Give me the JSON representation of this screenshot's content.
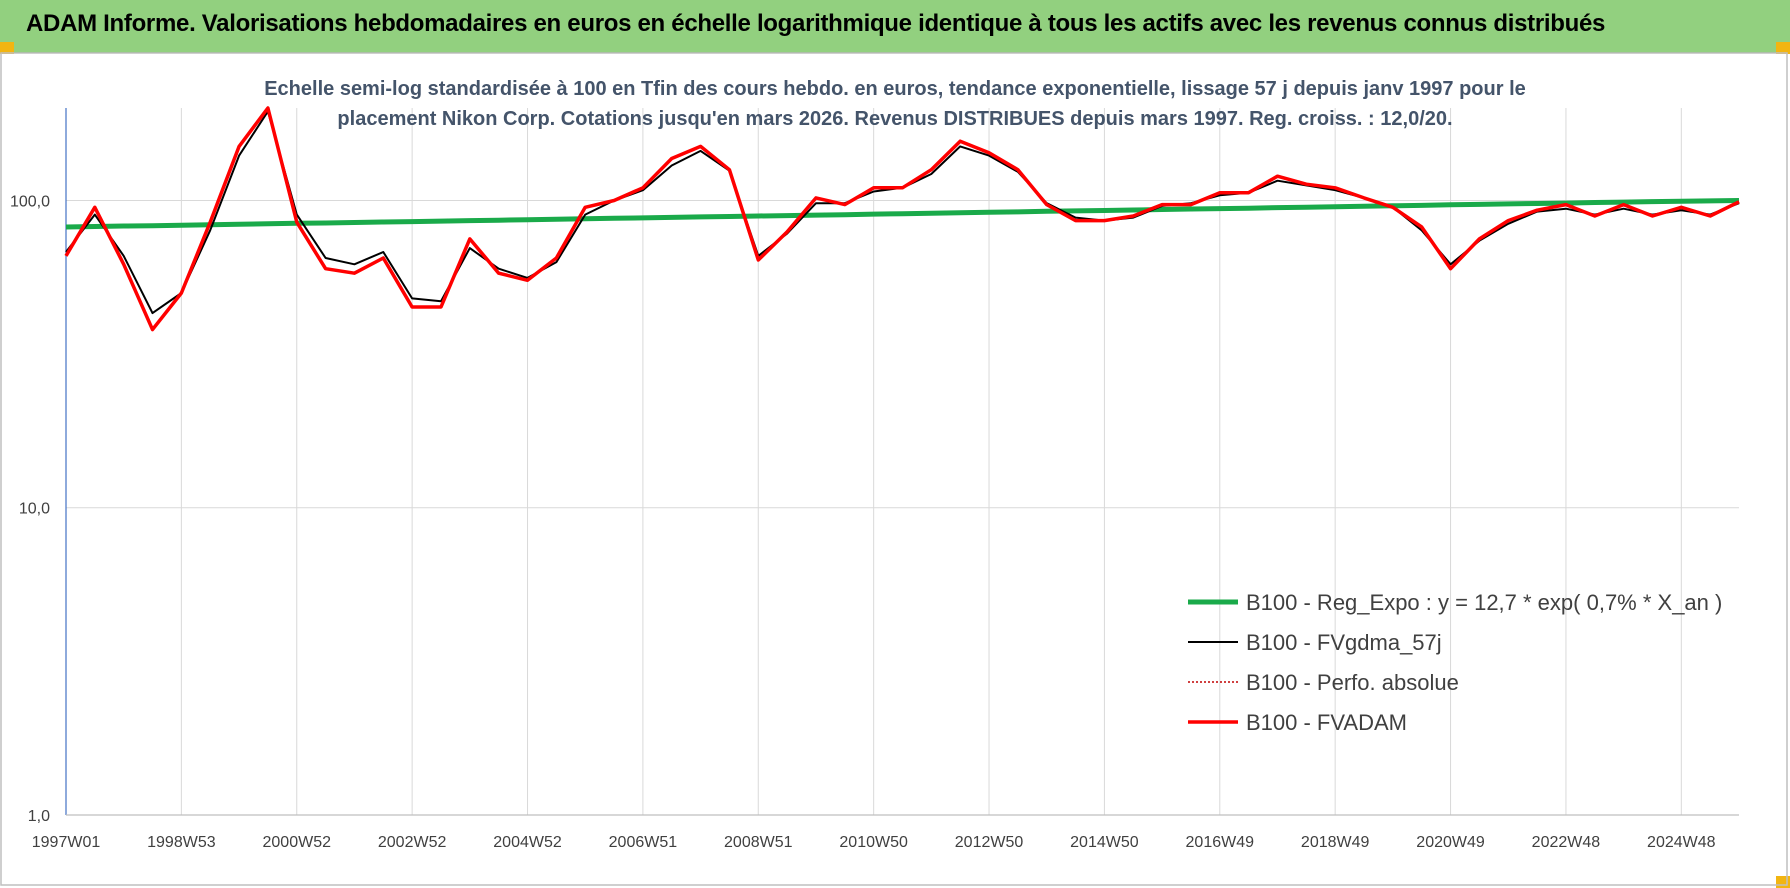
{
  "chart_data": {
    "type": "line",
    "title": "ADAM Informe. Valorisations hebdomadaires en euros en échelle logarithmique identique à tous les actifs avec les revenus connus distribués",
    "subtitle": "Echelle semi-log standardisée à 100 en Tfin des cours hebdo. en euros, tendance exponentielle, lissage 57 j depuis janv 1997 pour le placement Nikon Corp. Cotations jusqu'en mars 2026. Revenus DISTRIBUES depuis mars 1997. Reg. croiss. : 12,0/20.",
    "categories": [
      "1997W01",
      null,
      null,
      null,
      "1998W53",
      null,
      null,
      null,
      "2000W52",
      null,
      null,
      null,
      "2002W52",
      null,
      null,
      null,
      "2004W52",
      null,
      null,
      null,
      "2006W51",
      null,
      null,
      null,
      "2008W51",
      null,
      null,
      null,
      "2010W50",
      null,
      null,
      null,
      "2012W50",
      null,
      null,
      null,
      "2014W50",
      null,
      null,
      null,
      "2016W49",
      null,
      null,
      null,
      "2018W49",
      null,
      null,
      null,
      "2020W49",
      null,
      null,
      null,
      "2022W48",
      null,
      null,
      null,
      "2024W48",
      null,
      null
    ],
    "log": true,
    "ylim": [
      1,
      200
    ],
    "yticks": [
      {
        "value": 1,
        "label": "1,0"
      },
      {
        "value": 10,
        "label": "10,0"
      },
      {
        "value": 100,
        "label": "100,0"
      }
    ],
    "grid": true,
    "series": [
      {
        "name": "B100 - Reg_Expo : y = 12,7 * exp( 0,7% *  X_an )",
        "color": "#1aaa4a",
        "style": "solid",
        "values": [
          82.0,
          82.3,
          82.6,
          82.8,
          83.1,
          83.4,
          83.7,
          84.0,
          84.3,
          84.5,
          84.8,
          85.1,
          85.4,
          85.7,
          86.0,
          86.3,
          86.6,
          86.9,
          87.2,
          87.5,
          87.8,
          88.1,
          88.4,
          88.7,
          89.0,
          89.3,
          89.6,
          89.9,
          90.3,
          90.6,
          90.9,
          91.2,
          91.5,
          91.8,
          92.2,
          92.5,
          92.8,
          93.1,
          93.5,
          93.8,
          94.1,
          94.4,
          94.8,
          95.1,
          95.4,
          95.8,
          96.1,
          96.4,
          96.8,
          97.1,
          97.5,
          97.8,
          98.1,
          98.5,
          98.8,
          99.2,
          99.5,
          99.7,
          100.0
        ]
      },
      {
        "name": "B100 - FVgdma_57j",
        "color": "#000000",
        "style": "solid",
        "values": [
          68,
          90,
          66,
          43,
          50,
          80,
          140,
          195,
          90,
          65,
          62,
          68,
          48,
          47,
          70,
          60,
          56,
          63,
          90,
          100,
          108,
          130,
          145,
          125,
          66,
          78,
          98,
          98,
          107,
          110,
          122,
          150,
          140,
          124,
          98,
          88,
          86,
          88,
          96,
          98,
          104,
          106,
          116,
          112,
          108,
          102,
          95,
          80,
          62,
          74,
          84,
          92,
          94,
          90,
          94,
          90,
          93,
          90,
          98
        ]
      },
      {
        "name": "B100 - Perfo. absolue",
        "color": "#c00000",
        "style": "dotted",
        "values": [
          66,
          95,
          62,
          38,
          50,
          85,
          150,
          200,
          85,
          60,
          58,
          65,
          45,
          45,
          75,
          58,
          55,
          65,
          95,
          100,
          110,
          137,
          150,
          126,
          64,
          79,
          102,
          97,
          110,
          110,
          126,
          156,
          143,
          126,
          97,
          86,
          86,
          89,
          97,
          97,
          106,
          106,
          120,
          113,
          110,
          102,
          95,
          82,
          60,
          75,
          86,
          93,
          97,
          89,
          97,
          89,
          95,
          89,
          99
        ]
      },
      {
        "name": "B100 - FVADAM",
        "color": "#ff0000",
        "style": "solid",
        "values": [
          66,
          95,
          62,
          38,
          50,
          85,
          150,
          200,
          85,
          60,
          58,
          65,
          45,
          45,
          75,
          58,
          55,
          65,
          95,
          100,
          110,
          137,
          150,
          126,
          64,
          79,
          102,
          97,
          110,
          110,
          126,
          156,
          143,
          126,
          97,
          86,
          86,
          89,
          97,
          97,
          106,
          106,
          120,
          113,
          110,
          102,
          95,
          82,
          60,
          75,
          86,
          93,
          97,
          89,
          97,
          89,
          95,
          89,
          99
        ]
      }
    ]
  }
}
